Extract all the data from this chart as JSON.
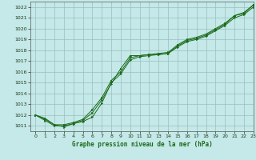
{
  "title": "Graphe pression niveau de la mer (hPa)",
  "background_color": "#c5e8e8",
  "grid_color": "#9bbfbf",
  "line_color": "#1a6b1a",
  "marker_color": "#1a6b1a",
  "xlim": [
    -0.5,
    23
  ],
  "ylim": [
    1010.5,
    1022.5
  ],
  "xticks": [
    0,
    1,
    2,
    3,
    4,
    5,
    6,
    7,
    8,
    9,
    10,
    11,
    12,
    13,
    14,
    15,
    16,
    17,
    18,
    19,
    20,
    21,
    22,
    23
  ],
  "yticks": [
    1011,
    1012,
    1013,
    1014,
    1015,
    1016,
    1017,
    1018,
    1019,
    1020,
    1021,
    1022
  ],
  "series1_x": [
    0,
    1,
    2,
    3,
    4,
    5,
    6,
    7,
    8,
    9,
    10,
    11,
    12,
    13,
    14,
    15,
    16,
    17,
    18,
    19,
    20,
    21,
    22,
    23
  ],
  "series1_y": [
    1012.0,
    1011.7,
    1011.1,
    1010.9,
    1011.2,
    1011.5,
    1012.2,
    1013.4,
    1014.9,
    1016.3,
    1017.5,
    1017.5,
    1017.6,
    1017.6,
    1017.7,
    1018.4,
    1018.9,
    1019.1,
    1019.4,
    1019.9,
    1020.4,
    1021.2,
    1021.5,
    1022.2
  ],
  "series2_x": [
    0,
    1,
    2,
    3,
    4,
    5,
    6,
    7,
    8,
    9,
    10,
    11,
    12,
    13,
    14,
    15,
    16,
    17,
    18,
    19,
    20,
    21,
    22,
    23
  ],
  "series2_y": [
    1012.0,
    1011.6,
    1011.1,
    1011.1,
    1011.3,
    1011.6,
    1012.5,
    1013.6,
    1015.2,
    1016.0,
    1017.3,
    1017.5,
    1017.6,
    1017.7,
    1017.8,
    1018.5,
    1019.0,
    1019.2,
    1019.5,
    1020.0,
    1020.5,
    1021.2,
    1021.4,
    1022.2
  ],
  "series3_x": [
    0,
    1,
    2,
    3,
    4,
    5,
    6,
    7,
    8,
    9,
    10,
    11,
    12,
    13,
    14,
    15,
    16,
    17,
    18,
    19,
    20,
    21,
    22,
    23
  ],
  "series3_y": [
    1012.0,
    1011.5,
    1011.0,
    1011.0,
    1011.2,
    1011.4,
    1011.8,
    1013.1,
    1015.0,
    1015.8,
    1017.1,
    1017.4,
    1017.5,
    1017.6,
    1017.7,
    1018.3,
    1018.8,
    1019.0,
    1019.3,
    1019.8,
    1020.3,
    1021.0,
    1021.3,
    1022.0
  ]
}
